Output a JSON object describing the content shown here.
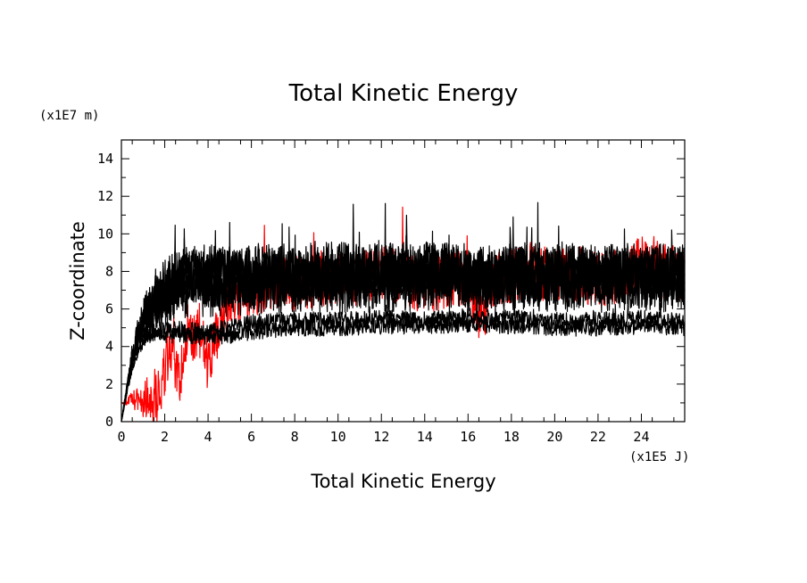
{
  "chart_data": {
    "type": "line",
    "title": "Total Kinetic Energy",
    "xlabel": "Total Kinetic Energy",
    "ylabel": "Z-coordinate",
    "x_unit": "(x1E5 J)",
    "y_unit": "(x1E7 m)",
    "xlim": [
      0,
      26
    ],
    "ylim": [
      0,
      15
    ],
    "x_ticks": [
      "0",
      "2",
      "4",
      "6",
      "8",
      "10",
      "12",
      "14",
      "16",
      "18",
      "20",
      "22",
      "24"
    ],
    "y_ticks": [
      "0",
      "2",
      "4",
      "6",
      "8",
      "10",
      "12",
      "14"
    ],
    "grid": false,
    "legend": "none",
    "colors": {
      "highlight": "#ff0000",
      "others": "#000000"
    },
    "series": [
      {
        "color": "#ff0000",
        "x": [
          0,
          0.5,
          1,
          1.5,
          1.8,
          2,
          2.2,
          2.5,
          2.7,
          3,
          3.3,
          3.6,
          4,
          4.5,
          5,
          5.5,
          6,
          7,
          8,
          9,
          10,
          11,
          12,
          13,
          14,
          15,
          16,
          16.7,
          17,
          18,
          19,
          20,
          21,
          22,
          23,
          24,
          25,
          26
        ],
        "y": [
          1,
          1.1,
          1.2,
          1.4,
          1.6,
          2.6,
          3.8,
          3.0,
          2.0,
          4.5,
          4.0,
          5.0,
          3.0,
          4.8,
          6.3,
          6.5,
          7.0,
          7.5,
          7.2,
          7.6,
          7.8,
          7.5,
          8.0,
          7.7,
          7.2,
          7.5,
          7.6,
          5.2,
          7.4,
          7.8,
          8.2,
          7.6,
          7.9,
          7.5,
          7.8,
          8.4,
          8.0,
          7.8
        ]
      },
      {
        "color": "#000000",
        "x": [
          0,
          0.3,
          0.6,
          1,
          1.5,
          2,
          3,
          4,
          5,
          6,
          8,
          10,
          12,
          14,
          16,
          18,
          20,
          22,
          24,
          26
        ],
        "y": [
          0,
          2.2,
          3.6,
          4.4,
          4.7,
          4.6,
          4.6,
          4.5,
          4.6,
          4.8,
          5.0,
          5.0,
          5.1,
          5.1,
          5.2,
          5.1,
          5.0,
          5.0,
          5.1,
          5.0
        ]
      },
      {
        "color": "#000000",
        "x": [
          0,
          0.3,
          0.6,
          1,
          1.5,
          2,
          3,
          4,
          5,
          6,
          8,
          10,
          12,
          14,
          16,
          18,
          20,
          22,
          24,
          26
        ],
        "y": [
          0,
          1.8,
          3.2,
          4.2,
          4.8,
          4.9,
          4.9,
          4.8,
          5.0,
          5.3,
          5.4,
          5.4,
          5.5,
          5.4,
          5.6,
          5.5,
          5.4,
          5.4,
          5.5,
          5.3
        ]
      },
      {
        "color": "#000000",
        "x": [
          0,
          0.5,
          1,
          1.5,
          2,
          2.5,
          3,
          4,
          5,
          6,
          8,
          10,
          12,
          14,
          16,
          18,
          20,
          22,
          24,
          26
        ],
        "y": [
          0,
          3.5,
          5.2,
          6.0,
          6.5,
          6.8,
          7.0,
          7.0,
          7.1,
          7.2,
          7.3,
          7.2,
          7.3,
          7.4,
          7.3,
          7.4,
          7.3,
          7.3,
          7.4,
          7.3
        ]
      },
      {
        "color": "#000000",
        "x": [
          0,
          0.5,
          1,
          1.5,
          2,
          2.5,
          3,
          4,
          5,
          6,
          8,
          10,
          12,
          14,
          16,
          18,
          20,
          22,
          24,
          26
        ],
        "y": [
          0,
          3.8,
          5.6,
          6.6,
          7.2,
          7.8,
          8.0,
          7.9,
          8.0,
          8.0,
          8.0,
          8.1,
          8.0,
          8.1,
          8.0,
          8.0,
          8.1,
          8.0,
          8.0,
          8.0
        ]
      },
      {
        "color": "#000000",
        "x": [
          0,
          0.5,
          1,
          1.5,
          2,
          2.5,
          3,
          4,
          5,
          6,
          8,
          10,
          12,
          14,
          16,
          18,
          20,
          22,
          24,
          26
        ],
        "y": [
          0,
          3.2,
          5.0,
          6.0,
          6.7,
          7.2,
          7.5,
          7.6,
          7.7,
          7.8,
          7.9,
          7.8,
          7.9,
          8.0,
          7.9,
          7.8,
          7.9,
          7.8,
          7.9,
          7.8
        ]
      },
      {
        "color": "#000000",
        "x": [
          0,
          0.5,
          1,
          1.5,
          2,
          2.5,
          3,
          4,
          5,
          6,
          8,
          10,
          12,
          14,
          16,
          18,
          20,
          22,
          24,
          26
        ],
        "y": [
          0,
          3.6,
          5.4,
          6.3,
          6.9,
          7.4,
          7.7,
          7.6,
          7.6,
          7.6,
          7.6,
          7.7,
          7.6,
          7.7,
          7.6,
          7.6,
          7.7,
          7.6,
          7.6,
          7.5
        ]
      }
    ]
  }
}
